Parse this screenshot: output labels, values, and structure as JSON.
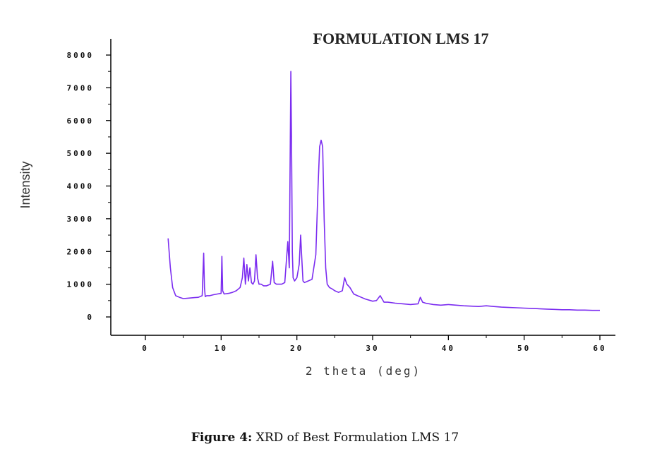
{
  "chart_data": {
    "type": "line",
    "title": "FORMULATION LMS 17",
    "xlabel": "2 theta (deg)",
    "ylabel": "Intensity",
    "xlim": [
      -5,
      65
    ],
    "ylim": [
      -500,
      8500
    ],
    "x_ticks": [
      0,
      10,
      20,
      30,
      40,
      50,
      60
    ],
    "x_tick_labels": [
      "0",
      "10",
      "20",
      "30",
      "40",
      "50",
      "60"
    ],
    "y_ticks": [
      0,
      1000,
      2000,
      3000,
      4000,
      5000,
      6000,
      7000,
      8000
    ],
    "y_tick_labels": [
      "0",
      "1000",
      "2000",
      "3000",
      "4000",
      "5000",
      "6000",
      "7000",
      "8000"
    ],
    "grid": false,
    "legend": "none",
    "series": [
      {
        "color": "#7b2cf0",
        "x": [
          3.0,
          3.3,
          3.6,
          4.0,
          4.5,
          5.0,
          5.5,
          6.0,
          6.5,
          7.0,
          7.5,
          7.7,
          7.8,
          7.9,
          8.1,
          8.5,
          9.0,
          9.5,
          10.0,
          10.1,
          10.2,
          10.4,
          11.0,
          11.5,
          12.0,
          12.5,
          12.8,
          13.0,
          13.2,
          13.4,
          13.6,
          13.8,
          14.0,
          14.2,
          14.4,
          14.6,
          14.8,
          15.0,
          15.3,
          15.6,
          16.0,
          16.5,
          16.8,
          17.0,
          17.3,
          17.6,
          18.0,
          18.4,
          18.8,
          19.0,
          19.1,
          19.2,
          19.3,
          19.4,
          19.5,
          19.7,
          20.0,
          20.3,
          20.5,
          20.6,
          20.8,
          21.0,
          21.5,
          22.0,
          22.5,
          22.8,
          23.0,
          23.2,
          23.4,
          23.6,
          23.8,
          24.0,
          24.3,
          24.7,
          25.0,
          25.5,
          26.0,
          26.3,
          26.6,
          27.0,
          27.5,
          28.0,
          28.5,
          29.0,
          30.0,
          30.5,
          31.0,
          31.5,
          32.0,
          33.0,
          34.0,
          35.0,
          36.0,
          36.3,
          36.6,
          37.0,
          38.0,
          39.0,
          40.0,
          41.0,
          42.0,
          43.0,
          44.0,
          45.0,
          46.0,
          47.0,
          48.0,
          49.0,
          50.0,
          51.0,
          52.0,
          53.0,
          54.0,
          55.0,
          56.0,
          57.0,
          58.0,
          59.0,
          60.0
        ],
        "y": [
          2400,
          1500,
          900,
          650,
          600,
          560,
          570,
          580,
          590,
          600,
          650,
          1950,
          900,
          620,
          650,
          650,
          680,
          700,
          720,
          1850,
          800,
          700,
          720,
          750,
          800,
          900,
          1200,
          1800,
          1000,
          1600,
          1100,
          1500,
          1050,
          1000,
          1100,
          1900,
          1200,
          1000,
          1000,
          950,
          950,
          1000,
          1700,
          1050,
          1000,
          1000,
          1000,
          1050,
          2300,
          1500,
          4500,
          7500,
          5000,
          2000,
          1200,
          1100,
          1200,
          1600,
          2500,
          2000,
          1100,
          1050,
          1100,
          1150,
          1900,
          4000,
          5200,
          5400,
          5200,
          3000,
          1500,
          1000,
          900,
          850,
          800,
          750,
          800,
          1200,
          1000,
          900,
          700,
          650,
          600,
          550,
          480,
          500,
          650,
          450,
          450,
          420,
          400,
          380,
          400,
          600,
          450,
          420,
          380,
          360,
          380,
          360,
          340,
          330,
          320,
          340,
          320,
          300,
          290,
          280,
          270,
          260,
          250,
          240,
          230,
          220,
          220,
          210,
          210,
          200,
          200
        ]
      }
    ]
  },
  "caption": {
    "label": "Figure 4:",
    "text": " XRD of Best Formulation LMS 17"
  }
}
